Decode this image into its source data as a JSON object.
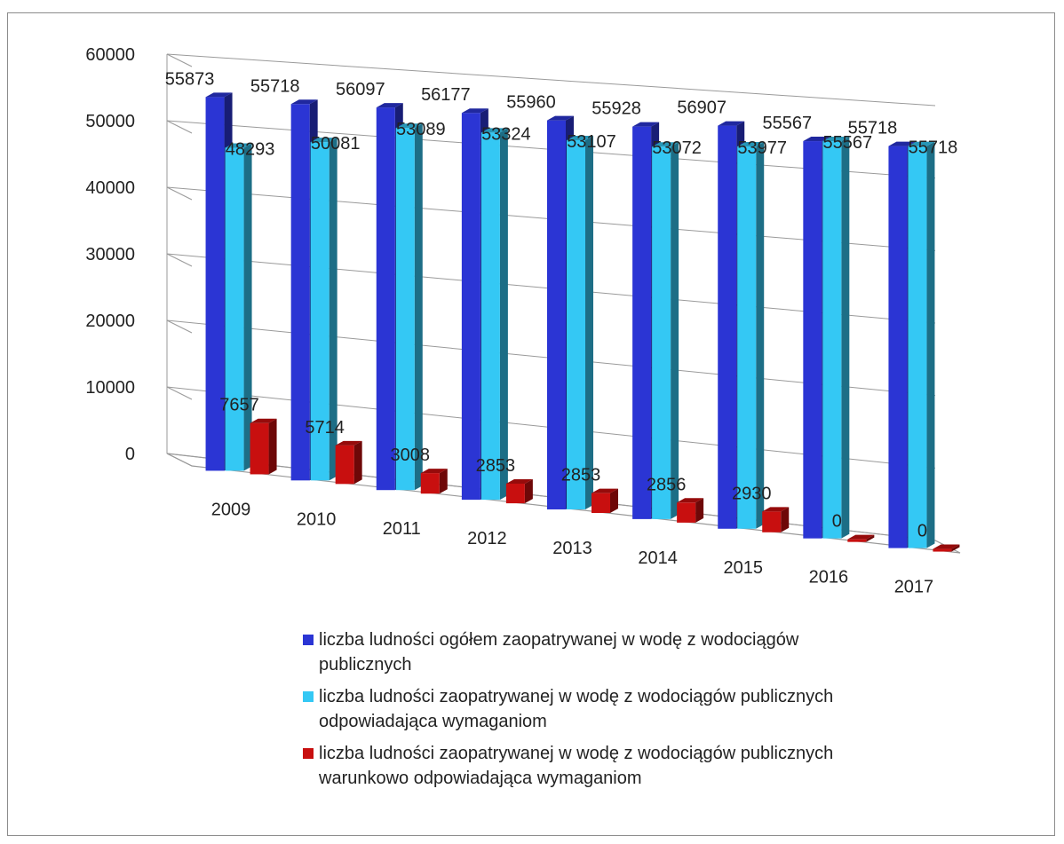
{
  "chart_data": {
    "type": "bar",
    "title": "",
    "xlabel": "",
    "ylabel": "",
    "ylim": [
      0,
      60000
    ],
    "yticks": [
      "0",
      "10000",
      "20000",
      "30000",
      "40000",
      "50000",
      "60000"
    ],
    "categories": [
      "2009",
      "2010",
      "2011",
      "2012",
      "2013",
      "2014",
      "2015",
      "2016",
      "2017"
    ],
    "series": [
      {
        "name": "liczba ludności ogółem zaopatrywanej w wodę z wodociągów publicznych",
        "color": "#2b35d4",
        "values": [
          55873,
          55718,
          56097,
          56177,
          55960,
          55928,
          56907,
          55567,
          55718
        ]
      },
      {
        "name": "liczba ludności zaopatrywanej w wodę  z wodociągów publicznych odpowiadająca wymaganiom",
        "color": "#34c8f4",
        "values": [
          48293,
          50081,
          53089,
          53324,
          53107,
          53072,
          53977,
          55567,
          55718
        ]
      },
      {
        "name": "liczba ludności zaopatrywanej w wodę  z wodociągów publicznych warunkowo odpowiadająca wymaganiom",
        "color": "#c80f0f",
        "values": [
          7657,
          5714,
          3008,
          2853,
          2853,
          2856,
          2930,
          0,
          0
        ]
      }
    ],
    "grid": true,
    "legend_position": "bottom",
    "style": "3d-perspective"
  }
}
